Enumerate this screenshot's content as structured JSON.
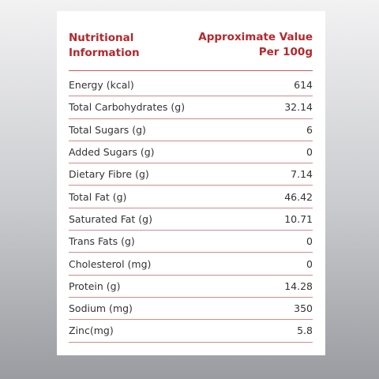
{
  "header": {
    "title": "Nutritional Information",
    "value_heading": "Approximate Value Per 100g"
  },
  "table": {
    "rows": [
      [
        "Energy (kcal)",
        "614"
      ],
      [
        "Total Carbohydrates (g)",
        "32.14"
      ],
      [
        "Total Sugars (g)",
        "6"
      ],
      [
        "Added Sugars (g)",
        "0"
      ],
      [
        "Dietary Fibre (g)",
        "7.14"
      ],
      [
        "Total Fat (g)",
        "46.42"
      ],
      [
        "Saturated Fat (g)",
        "10.71"
      ],
      [
        "Trans Fats (g)",
        "0"
      ],
      [
        "Cholesterol (mg)",
        "0"
      ],
      [
        "Protein (g)",
        "14.28"
      ],
      [
        "Sodium (mg)",
        "350"
      ],
      [
        "Zinc(mg)",
        "5.8"
      ]
    ]
  }
}
